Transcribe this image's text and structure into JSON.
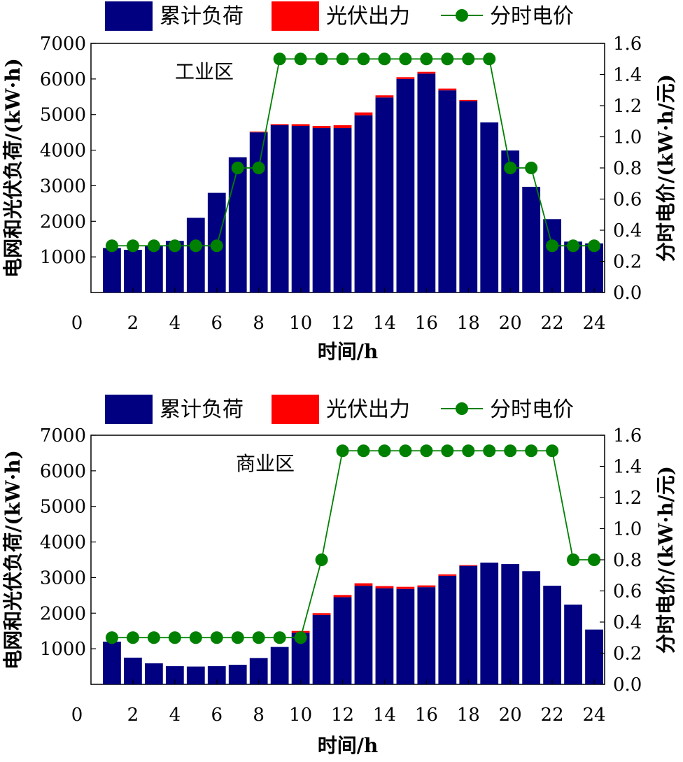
{
  "chart_data": [
    {
      "type": "bar",
      "region_label": "工业区",
      "legend": [
        "累计负荷",
        "光伏出力",
        "分时电价"
      ],
      "xlabel": "时间/h",
      "ylabel_left": "电网和光伏负荷/(kW·h)",
      "ylabel_right": "分时电价/(kW·h/元)",
      "xlim": [
        0,
        24.5
      ],
      "ylim_left": [
        0,
        7000
      ],
      "ylim_right": [
        0.0,
        1.6
      ],
      "x_ticks": [
        "0",
        "2",
        "4",
        "6",
        "8",
        "10",
        "12",
        "14",
        "16",
        "18",
        "20",
        "22",
        "24"
      ],
      "y_ticks_left": [
        "1000",
        "2000",
        "3000",
        "4000",
        "5000",
        "6000",
        "7000"
      ],
      "y_ticks_right": [
        "0.0",
        "0.2",
        "0.4",
        "0.6",
        "0.8",
        "1.0",
        "1.2",
        "1.4",
        "1.6"
      ],
      "x": [
        1,
        2,
        3,
        4,
        5,
        6,
        7,
        8,
        9,
        10,
        11,
        12,
        13,
        14,
        15,
        16,
        17,
        18,
        19,
        20,
        21,
        22,
        23,
        24
      ],
      "series": [
        {
          "name": "累计负荷",
          "color": "#000080",
          "values": [
            1250,
            1200,
            1300,
            1450,
            2100,
            2800,
            3800,
            4500,
            4700,
            4680,
            4620,
            4620,
            4980,
            5480,
            6000,
            6150,
            5680,
            5380,
            4780,
            3990,
            2970,
            2060,
            1430,
            1380
          ]
        },
        {
          "name": "光伏出力",
          "color": "#ff0000",
          "values": [
            0,
            0,
            0,
            0,
            0,
            0,
            0,
            20,
            30,
            50,
            60,
            80,
            80,
            60,
            50,
            50,
            50,
            30,
            0,
            0,
            0,
            0,
            0,
            0
          ]
        },
        {
          "name": "分时电价",
          "color": "#008000",
          "values": [
            0.3,
            0.3,
            0.3,
            0.3,
            0.3,
            0.3,
            0.8,
            0.8,
            1.5,
            1.5,
            1.5,
            1.5,
            1.5,
            1.5,
            1.5,
            1.5,
            1.5,
            1.5,
            1.5,
            0.8,
            0.8,
            0.3,
            0.3,
            0.3
          ]
        }
      ]
    },
    {
      "type": "bar",
      "region_label": "商业区",
      "legend": [
        "累计负荷",
        "光伏出力",
        "分时电价"
      ],
      "xlabel": "时间/h",
      "ylabel_left": "电网和光伏负荷/(kW·h)",
      "ylabel_right": "分时电价/(kW·h/元)",
      "xlim": [
        0,
        24.5
      ],
      "ylim_left": [
        0,
        7000
      ],
      "ylim_right": [
        0.0,
        1.6
      ],
      "x_ticks": [
        "0",
        "2",
        "4",
        "6",
        "8",
        "10",
        "12",
        "14",
        "16",
        "18",
        "20",
        "22",
        "24"
      ],
      "y_ticks_left": [
        "1000",
        "2000",
        "3000",
        "4000",
        "5000",
        "6000",
        "7000"
      ],
      "y_ticks_right": [
        "0.0",
        "0.2",
        "0.4",
        "0.6",
        "0.8",
        "1.0",
        "1.2",
        "1.4",
        "1.6"
      ],
      "x": [
        1,
        2,
        3,
        4,
        5,
        6,
        7,
        8,
        9,
        10,
        11,
        12,
        13,
        14,
        15,
        16,
        17,
        18,
        19,
        20,
        21,
        22,
        23,
        24
      ],
      "series": [
        {
          "name": "累计负荷",
          "color": "#000080",
          "values": [
            1200,
            750,
            590,
            510,
            500,
            510,
            550,
            740,
            1050,
            1450,
            1950,
            2450,
            2770,
            2700,
            2680,
            2730,
            3050,
            3330,
            3420,
            3380,
            3180,
            2770,
            2240,
            1540
          ]
        },
        {
          "name": "光伏出力",
          "color": "#ff0000",
          "values": [
            0,
            0,
            0,
            0,
            0,
            0,
            0,
            0,
            0,
            50,
            50,
            60,
            70,
            60,
            60,
            50,
            40,
            20,
            0,
            0,
            0,
            0,
            0,
            0
          ]
        },
        {
          "name": "分时电价",
          "color": "#008000",
          "values": [
            0.3,
            0.3,
            0.3,
            0.3,
            0.3,
            0.3,
            0.3,
            0.3,
            0.3,
            0.3,
            0.8,
            1.5,
            1.5,
            1.5,
            1.5,
            1.5,
            1.5,
            1.5,
            1.5,
            1.5,
            1.5,
            1.5,
            0.8,
            0.8
          ]
        }
      ]
    }
  ]
}
